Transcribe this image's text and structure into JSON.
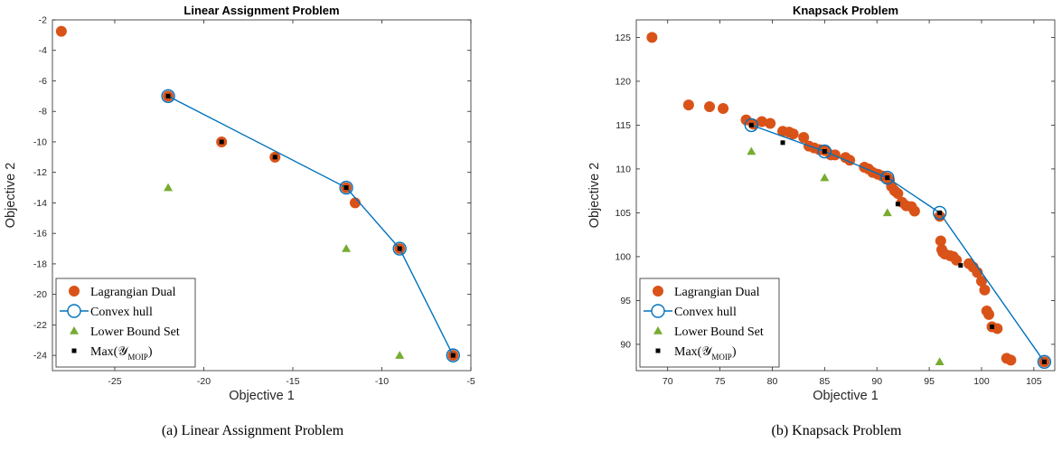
{
  "chart_data": [
    {
      "type": "scatter",
      "title": "Linear Assignment Problem",
      "xlabel": "Objective 1",
      "ylabel": "Objective 2",
      "xlim": [
        -28.5,
        -5
      ],
      "ylim": [
        -25,
        -2
      ],
      "xticks": [
        -25,
        -20,
        -15,
        -10,
        -5
      ],
      "yticks": [
        -24,
        -22,
        -20,
        -18,
        -16,
        -14,
        -12,
        -10,
        -8,
        -6,
        -4,
        -2
      ],
      "grid": false,
      "legend_position": "bottom-left",
      "caption": "(a) Linear Assignment Problem",
      "series": [
        {
          "name": "Lagrangian Dual",
          "marker": "circle-filled",
          "color": "#D95319",
          "x": [
            -28,
            -22,
            -19,
            -16,
            -12,
            -11.5,
            -9,
            -6
          ],
          "y": [
            -2.75,
            -7,
            -10,
            -11,
            -13,
            -14,
            -17,
            -24
          ]
        },
        {
          "name": "Convex hull",
          "marker": "circle-open-line",
          "color": "#0072BD",
          "x": [
            -22,
            -12,
            -9,
            -6
          ],
          "y": [
            -7,
            -13,
            -17,
            -24
          ]
        },
        {
          "name": "Lower Bound Set",
          "marker": "triangle",
          "color": "#77AC30",
          "x": [
            -22,
            -12,
            -9
          ],
          "y": [
            -13,
            -17,
            -24
          ]
        },
        {
          "name": "Max(𝒴",
          "name_sub": "MOIP",
          "name_close": ")",
          "marker": "square",
          "color": "#000000",
          "x": [
            -22,
            -19,
            -16,
            -12,
            -9,
            -6
          ],
          "y": [
            -7,
            -10,
            -11,
            -13,
            -17,
            -24
          ]
        }
      ]
    },
    {
      "type": "scatter",
      "title": "Knapsack Problem",
      "xlabel": "Objective 1",
      "ylabel": "Objective 2",
      "xlim": [
        67,
        107
      ],
      "ylim": [
        87,
        127
      ],
      "xticks": [
        70,
        75,
        80,
        85,
        90,
        95,
        100,
        105
      ],
      "yticks": [
        90,
        95,
        100,
        105,
        110,
        115,
        120,
        125
      ],
      "grid": false,
      "legend_position": "bottom-left",
      "caption": "(b) Knapsack Problem",
      "series": [
        {
          "name": "Lagrangian Dual",
          "marker": "circle-filled",
          "color": "#D95319",
          "x": [
            68.5,
            72,
            74,
            75.3,
            77.5,
            78.2,
            79,
            79.8,
            81,
            81.6,
            82,
            83,
            83.5,
            84,
            84.5,
            85,
            85.6,
            86,
            87,
            87.4,
            88.8,
            89.2,
            89.6,
            90.1,
            90.5,
            91,
            91.2,
            91.4,
            91.7,
            92,
            92.4,
            92.8,
            93.3,
            93.6,
            96,
            96.1,
            96.2,
            96.3,
            96.5,
            97,
            97.3,
            97.6,
            98.8,
            99.2,
            99.6,
            100,
            100.3,
            100.5,
            100.7,
            101,
            101.5,
            102.4,
            102.8,
            106
          ],
          "y": [
            125,
            117.3,
            117.1,
            116.9,
            115.6,
            115.1,
            115.4,
            115.2,
            114.3,
            114.2,
            114,
            113.6,
            112.6,
            112.4,
            112.2,
            112.1,
            111.6,
            111.6,
            111.3,
            111,
            110.2,
            110,
            109.6,
            109.4,
            109.2,
            109,
            108.7,
            108,
            107.5,
            107.2,
            106.2,
            105.8,
            105.7,
            105.2,
            104.6,
            101.8,
            100.8,
            100.5,
            100.3,
            100.1,
            100,
            99.6,
            99.2,
            98.8,
            98.2,
            97.2,
            96.2,
            93.8,
            93.4,
            92,
            91.8,
            88.4,
            88.2,
            88
          ]
        },
        {
          "name": "Convex hull",
          "marker": "circle-open-line",
          "color": "#0072BD",
          "x": [
            78,
            85,
            91,
            96,
            106
          ],
          "y": [
            115,
            112,
            109,
            105,
            88
          ]
        },
        {
          "name": "Lower Bound Set",
          "marker": "triangle",
          "color": "#77AC30",
          "x": [
            78,
            85,
            91,
            96
          ],
          "y": [
            112,
            109,
            105,
            88
          ]
        },
        {
          "name": "Max(𝒴",
          "name_sub": "MOIP",
          "name_close": ")",
          "marker": "square",
          "color": "#000000",
          "x": [
            78,
            81,
            85,
            91,
            92,
            96,
            98,
            101,
            106
          ],
          "y": [
            115,
            113,
            112,
            109,
            106,
            105,
            99,
            92,
            88
          ]
        }
      ]
    }
  ]
}
